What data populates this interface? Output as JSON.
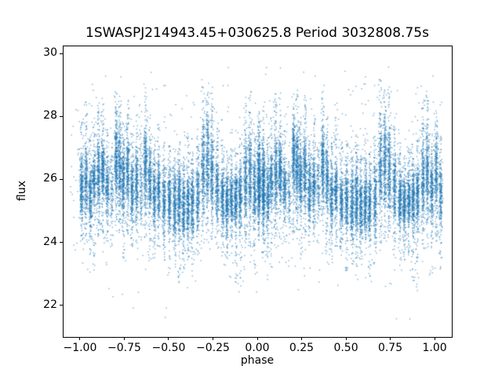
{
  "figure": {
    "title": "1SWASPJ214943.45+030625.8 Period 3032808.75s"
  },
  "chart_data": {
    "type": "scatter",
    "title": "1SWASPJ214943.45+030625.8 Period 3032808.75s",
    "xlabel": "phase",
    "ylabel": "flux",
    "xlim": [
      -1.097,
      1.097
    ],
    "ylim": [
      21.0,
      30.25
    ],
    "xticks": [
      {
        "v": -1.0,
        "label": "−1.00"
      },
      {
        "v": -0.75,
        "label": "−0.75"
      },
      {
        "v": -0.5,
        "label": "−0.50"
      },
      {
        "v": -0.25,
        "label": "−0.25"
      },
      {
        "v": 0.0,
        "label": "0.00"
      },
      {
        "v": 0.25,
        "label": "0.25"
      },
      {
        "v": 0.5,
        "label": "0.50"
      },
      {
        "v": 0.75,
        "label": "0.75"
      },
      {
        "v": 1.0,
        "label": "1.00"
      }
    ],
    "yticks": [
      {
        "v": 22,
        "label": "22"
      },
      {
        "v": 24,
        "label": "24"
      },
      {
        "v": 26,
        "label": "26"
      },
      {
        "v": 28,
        "label": "28"
      },
      {
        "v": 30,
        "label": "30"
      }
    ],
    "grid": false,
    "legend": null,
    "marker_color": "#1f77b4",
    "marker_alpha": 0.6,
    "marker_size_px": 1.4,
    "seed": 42,
    "flux_data_min": 21.55,
    "flux_data_max": 29.65,
    "gen": {
      "core_points": 240,
      "tail_points": 32,
      "x_jitter": 0.0048,
      "repeat_offsets": [
        0,
        -1
      ],
      "background": {
        "count": 1100,
        "phase_min": -1.06,
        "phase_max": 1.045,
        "flux_mean": 26.0,
        "flux_sigma": 1.55,
        "flux_min": 21.55,
        "flux_max": 29.65
      }
    },
    "streak_fields": [
      "phase",
      "flux_mean",
      "flux_sigma",
      "upper_tail",
      "lower_tail",
      "density"
    ],
    "streaks": [
      [
        0.005,
        25.8,
        0.5,
        1.6,
        1.4,
        1.0
      ],
      [
        0.03,
        26.0,
        0.5,
        2.0,
        1.5,
        0.9
      ],
      [
        0.055,
        25.5,
        0.45,
        1.5,
        1.5,
        0.9
      ],
      [
        0.075,
        26.0,
        0.4,
        1.8,
        2.4,
        0.8
      ],
      [
        0.1,
        26.2,
        0.6,
        2.0,
        1.6,
        1.0
      ],
      [
        0.125,
        26.3,
        0.45,
        2.1,
        1.8,
        1.1
      ],
      [
        0.15,
        25.8,
        0.4,
        1.4,
        1.4,
        0.8
      ],
      [
        0.175,
        25.6,
        0.5,
        1.2,
        1.2,
        0.35
      ],
      [
        0.2,
        26.7,
        0.55,
        1.6,
        1.8,
        1.1
      ],
      [
        0.22,
        26.45,
        0.57,
        1.7,
        1.6,
        1.0
      ],
      [
        0.24,
        26.0,
        0.5,
        1.5,
        2.0,
        1.0
      ],
      [
        0.265,
        26.3,
        0.55,
        1.7,
        1.5,
        1.0
      ],
      [
        0.29,
        25.7,
        0.45,
        1.5,
        1.4,
        0.9
      ],
      [
        0.315,
        25.9,
        0.45,
        1.7,
        1.5,
        0.9
      ],
      [
        0.34,
        25.8,
        0.5,
        1.5,
        1.3,
        0.4
      ],
      [
        0.365,
        26.5,
        0.55,
        2.1,
        1.8,
        1.1
      ],
      [
        0.39,
        26.0,
        0.5,
        1.6,
        2.2,
        0.9
      ],
      [
        0.415,
        25.5,
        0.45,
        1.5,
        1.5,
        0.9
      ],
      [
        0.44,
        25.7,
        0.45,
        1.9,
        1.4,
        0.9
      ],
      [
        0.47,
        25.3,
        0.45,
        1.5,
        1.4,
        0.9
      ],
      [
        0.5,
        25.4,
        0.45,
        1.4,
        1.9,
        1.0
      ],
      [
        0.53,
        25.25,
        0.48,
        1.3,
        1.5,
        1.0
      ],
      [
        0.555,
        25.4,
        0.5,
        1.3,
        2.2,
        1.1
      ],
      [
        0.58,
        25.1,
        0.45,
        1.3,
        1.5,
        1.0
      ],
      [
        0.605,
        25.3,
        0.45,
        1.7,
        1.4,
        1.0
      ],
      [
        0.63,
        25.2,
        0.45,
        1.3,
        2.2,
        1.0
      ],
      [
        0.66,
        25.5,
        0.5,
        1.4,
        1.4,
        0.9
      ],
      [
        0.69,
        26.4,
        0.7,
        2.1,
        1.7,
        1.0
      ],
      [
        0.715,
        26.6,
        0.7,
        1.6,
        1.8,
        1.0
      ],
      [
        0.74,
        26.3,
        0.65,
        2.1,
        1.6,
        1.0
      ],
      [
        0.77,
        25.8,
        0.5,
        1.5,
        1.5,
        0.9
      ],
      [
        0.8,
        25.4,
        0.4,
        1.4,
        2.0,
        1.0
      ],
      [
        0.825,
        25.25,
        0.38,
        1.2,
        1.4,
        1.0
      ],
      [
        0.85,
        25.4,
        0.4,
        1.3,
        1.4,
        0.9
      ],
      [
        0.875,
        25.4,
        0.45,
        1.3,
        2.2,
        1.0
      ],
      [
        0.9,
        25.5,
        0.45,
        1.4,
        2.6,
        1.0
      ],
      [
        0.93,
        26.0,
        0.6,
        2.0,
        1.6,
        1.0
      ],
      [
        0.955,
        26.3,
        0.65,
        1.9,
        1.8,
        1.0
      ],
      [
        0.98,
        25.6,
        0.5,
        1.4,
        2.1,
        0.9
      ],
      [
        1.005,
        26.2,
        0.6,
        1.5,
        1.6,
        0.9
      ],
      [
        1.03,
        25.5,
        0.5,
        1.4,
        1.9,
        0.8
      ]
    ]
  }
}
